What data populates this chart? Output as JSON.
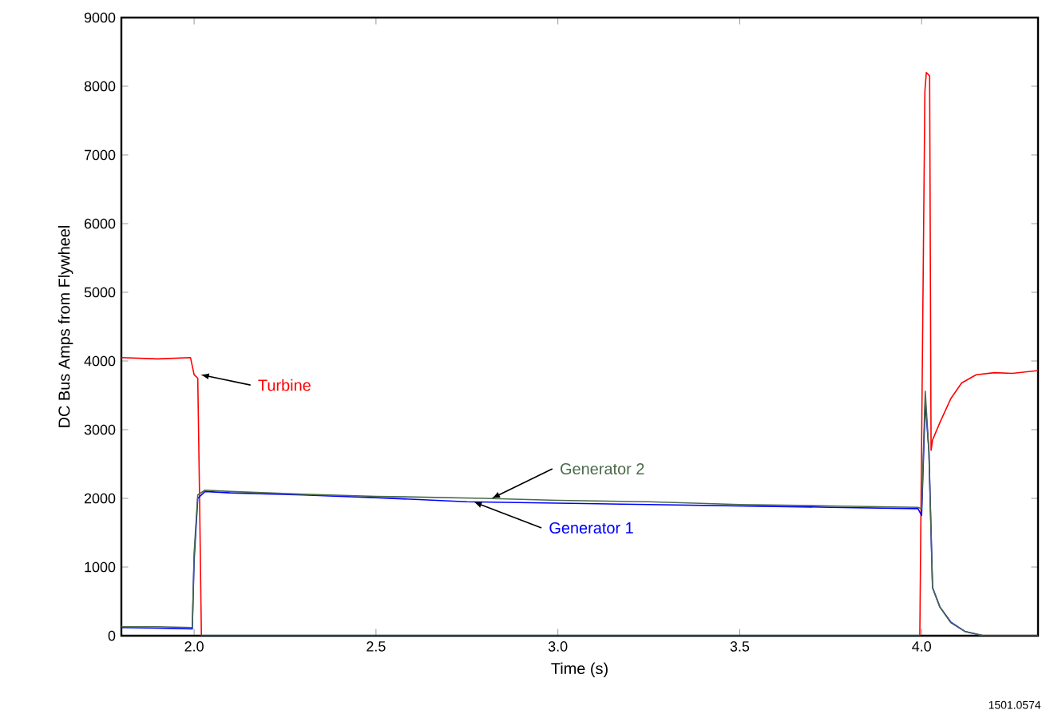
{
  "chart_data": {
    "type": "line",
    "xlabel": "Time (s)",
    "ylabel": "DC Bus Amps from Flywheel",
    "xlim": [
      1.8,
      4.32
    ],
    "ylim": [
      0,
      9000
    ],
    "xticks": [
      {
        "value": 2.0,
        "label": "2.0"
      },
      {
        "value": 2.5,
        "label": "2.5"
      },
      {
        "value": 3.0,
        "label": "3.0"
      },
      {
        "value": 3.5,
        "label": "3.5"
      },
      {
        "value": 4.0,
        "label": "4.0"
      }
    ],
    "yticks": [
      0,
      1000,
      2000,
      3000,
      4000,
      5000,
      6000,
      7000,
      8000,
      9000
    ],
    "grid": false,
    "legend": false,
    "marker": "none",
    "line_style": "solid",
    "series": [
      {
        "name": "Turbine",
        "color": "#ff0000",
        "x": [
          1.8,
          1.9,
          1.99,
          2.0,
          2.01,
          2.015,
          2.02,
          2.02,
          3.995,
          4.009,
          4.013,
          4.022,
          4.026,
          4.03,
          4.05,
          4.08,
          4.11,
          4.15,
          4.2,
          4.25,
          4.32
        ],
        "values": [
          4050,
          4030,
          4050,
          3800,
          3750,
          2000,
          0,
          0,
          0,
          7930,
          8200,
          8150,
          2700,
          2850,
          3100,
          3450,
          3680,
          3800,
          3830,
          3820,
          3860
        ]
      },
      {
        "name": "Generator 1",
        "color": "#0000ff",
        "x": [
          1.8,
          1.9,
          1.995,
          2.0,
          2.01,
          2.03,
          2.1,
          2.3,
          2.5,
          2.75,
          3.0,
          3.25,
          3.5,
          3.75,
          3.99,
          4.0,
          4.01,
          4.02,
          4.03,
          4.05,
          4.08,
          4.12,
          4.17,
          4.32
        ],
        "values": [
          120,
          110,
          100,
          1100,
          2000,
          2100,
          2080,
          2050,
          2010,
          1950,
          1930,
          1910,
          1890,
          1870,
          1850,
          1750,
          3400,
          2700,
          700,
          420,
          200,
          60,
          0,
          0
        ]
      },
      {
        "name": "Generator 2",
        "color": "#4a6a4a",
        "x": [
          1.8,
          1.9,
          1.995,
          2.0,
          2.01,
          2.03,
          2.1,
          2.3,
          2.5,
          2.8,
          3.0,
          3.25,
          3.5,
          3.75,
          3.99,
          4.0,
          4.01,
          4.02,
          4.03,
          4.05,
          4.08,
          4.12,
          4.17,
          4.32
        ],
        "values": [
          130,
          130,
          120,
          1200,
          2050,
          2120,
          2100,
          2060,
          2030,
          2000,
          1970,
          1950,
          1910,
          1890,
          1870,
          1850,
          3560,
          2670,
          700,
          420,
          190,
          60,
          0,
          0
        ]
      }
    ],
    "annotations": [
      "1501.0574"
    ]
  }
}
